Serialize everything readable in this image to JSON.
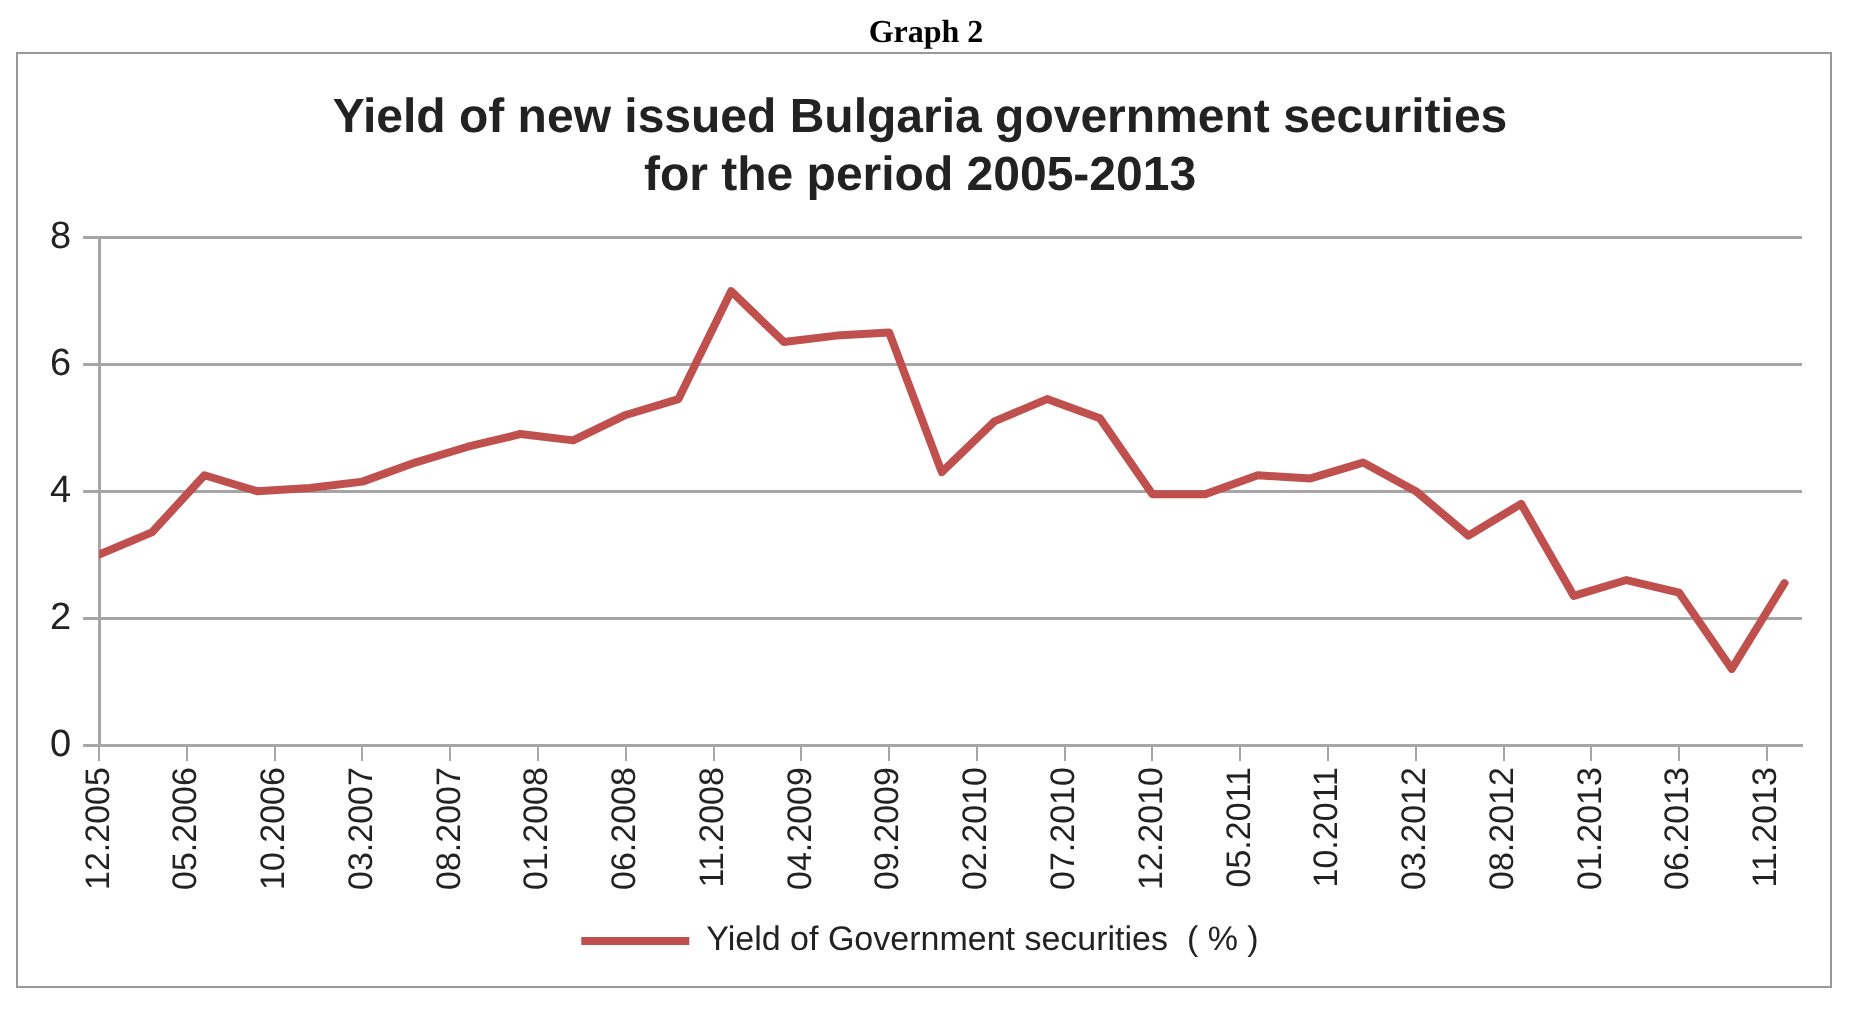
{
  "chart_data": {
    "type": "line",
    "title": "Yield of new issued Bulgaria government securities\nfor the period 2005-2013",
    "annotations": [
      "Graph 2"
    ],
    "x": [
      "2005-12",
      "2006-03",
      "2006-06",
      "2006-09",
      "2006-12",
      "2007-03",
      "2007-06",
      "2007-09",
      "2007-12",
      "2008-03",
      "2008-06",
      "2008-09",
      "2008-12",
      "2009-03",
      "2009-06",
      "2009-09",
      "2009-12",
      "2010-03",
      "2010-06",
      "2010-09",
      "2010-12",
      "2011-03",
      "2011-06",
      "2011-09",
      "2011-12",
      "2012-03",
      "2012-06",
      "2012-09",
      "2012-12",
      "2013-03",
      "2013-06",
      "2013-09",
      "2013-12"
    ],
    "series": [
      {
        "name": "Yield of Government securities  ( % )",
        "color": "#c0504d",
        "values": [
          3.0,
          3.35,
          4.25,
          4.0,
          4.05,
          4.15,
          4.45,
          4.7,
          4.9,
          4.8,
          5.2,
          5.45,
          7.15,
          6.35,
          6.45,
          6.5,
          4.3,
          5.1,
          5.45,
          5.15,
          3.95,
          3.95,
          4.25,
          4.2,
          4.45,
          4.0,
          3.3,
          3.8,
          2.35,
          2.6,
          2.4,
          1.2,
          2.55
        ]
      }
    ],
    "xlim": [
      "2005-12",
      "2014-01"
    ],
    "xticks": [
      {
        "value": "2005-12",
        "label": "12.2005"
      },
      {
        "value": "2006-05",
        "label": "05.2006"
      },
      {
        "value": "2006-10",
        "label": "10.2006"
      },
      {
        "value": "2007-03",
        "label": "03.2007"
      },
      {
        "value": "2007-08",
        "label": "08.2007"
      },
      {
        "value": "2008-01",
        "label": "01.2008"
      },
      {
        "value": "2008-06",
        "label": "06.2008"
      },
      {
        "value": "2008-11",
        "label": "11.2008"
      },
      {
        "value": "2009-04",
        "label": "04.2009"
      },
      {
        "value": "2009-09",
        "label": "09.2009"
      },
      {
        "value": "2010-02",
        "label": "02.2010"
      },
      {
        "value": "2010-07",
        "label": "07.2010"
      },
      {
        "value": "2010-12",
        "label": "12.2010"
      },
      {
        "value": "2011-05",
        "label": "05.2011"
      },
      {
        "value": "2011-10",
        "label": "10.2011"
      },
      {
        "value": "2012-03",
        "label": "03.2012"
      },
      {
        "value": "2012-08",
        "label": "08.2012"
      },
      {
        "value": "2013-01",
        "label": "01.2013"
      },
      {
        "value": "2013-06",
        "label": "06.2013"
      },
      {
        "value": "2013-11",
        "label": "11.2013"
      }
    ],
    "ylim": [
      0,
      8
    ],
    "yticks": [
      0,
      2,
      4,
      6,
      8
    ],
    "grid": "y",
    "legend": "bottom",
    "marker": "none",
    "line_style": "solid"
  }
}
